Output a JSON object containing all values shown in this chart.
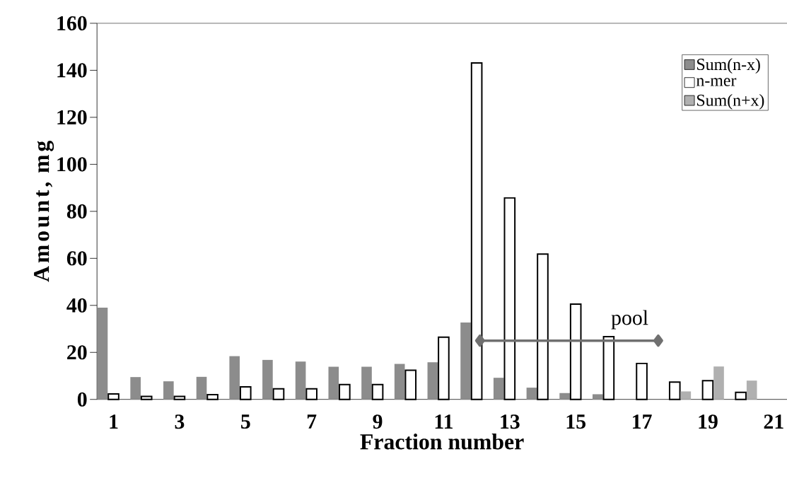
{
  "chart_data": {
    "type": "bar",
    "xlabel": "Fraction number",
    "ylabel": "Amount, mg",
    "x": [
      1,
      2,
      3,
      4,
      5,
      6,
      7,
      8,
      9,
      10,
      11,
      12,
      13,
      14,
      15,
      16,
      17,
      18,
      19,
      20
    ],
    "xlim": [
      0.5,
      21.4
    ],
    "xticks": [
      1,
      3,
      5,
      7,
      9,
      11,
      13,
      15,
      17,
      19,
      21
    ],
    "ylim": [
      0,
      160
    ],
    "yticks": [
      0,
      20,
      40,
      60,
      80,
      100,
      120,
      140,
      160
    ],
    "legend": "top right",
    "series": [
      {
        "name": "Sum(n-x)",
        "color": "#8c8c8c",
        "values": [
          39.0,
          9.5,
          7.7,
          9.6,
          18.4,
          16.8,
          16.1,
          13.9,
          13.9,
          15.1,
          15.8,
          32.7,
          9.2,
          5.0,
          2.7,
          2.2,
          null,
          null,
          null,
          null
        ]
      },
      {
        "name": "n-mer",
        "color": "#000000",
        "values": [
          2.3,
          1.3,
          1.3,
          2.0,
          5.3,
          4.5,
          4.5,
          6.3,
          6.3,
          12.4,
          26.5,
          143.1,
          85.7,
          61.8,
          40.5,
          26.7,
          15.3,
          7.4,
          8.0,
          3.0
        ]
      },
      {
        "name": "Sum(n+x)",
        "color": "#b0b0b0",
        "values": [
          null,
          null,
          null,
          null,
          null,
          null,
          null,
          null,
          null,
          null,
          null,
          null,
          null,
          null,
          null,
          null,
          null,
          3.4,
          14.0,
          8.0
        ]
      },
      {
        "name": "pool",
        "type": "line",
        "color": "#707070",
        "marker": "diamond",
        "x": [
          12.1,
          17.5
        ],
        "values": [
          25,
          25
        ]
      }
    ]
  }
}
